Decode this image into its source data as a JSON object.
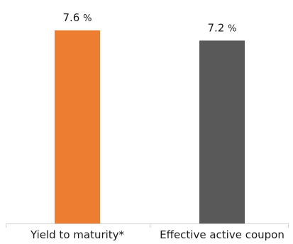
{
  "chart_data": {
    "type": "bar",
    "categories": [
      "Yield to maturity*",
      "Effective active coupon"
    ],
    "values": [
      7.6,
      7.2
    ],
    "value_labels": [
      "7.6",
      "7.2"
    ],
    "value_unit": "%",
    "bar_colors": [
      "#ED7D31",
      "#595959"
    ],
    "ylim": [
      0,
      7.6
    ],
    "grid": false,
    "legend": "none",
    "title": "",
    "xlabel": "",
    "ylabel": ""
  }
}
